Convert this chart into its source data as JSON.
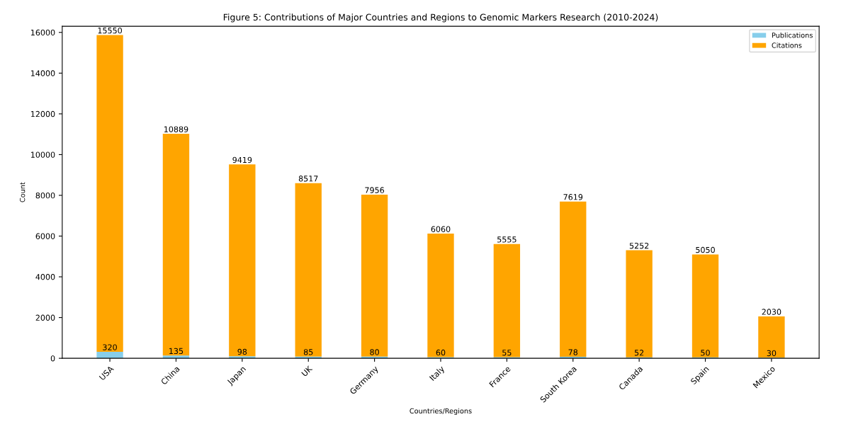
{
  "chart_data": {
    "type": "bar",
    "title": "Figure 5: Contributions of Major Countries and Regions to Genomic Markers Research (2010-2024)",
    "xlabel": "Countries/Regions",
    "ylabel": "Count",
    "categories": [
      "USA",
      "China",
      "Japan",
      "UK",
      "Germany",
      "Italy",
      "France",
      "South Korea",
      "Canada",
      "Spain",
      "Mexico"
    ],
    "stacked": true,
    "series": [
      {
        "name": "Publications",
        "color": "#87ceeb",
        "values": [
          320,
          135,
          98,
          85,
          80,
          60,
          55,
          78,
          52,
          50,
          30
        ]
      },
      {
        "name": "Citations",
        "color": "#ffa500",
        "values": [
          15550,
          10889,
          9419,
          8517,
          7956,
          6060,
          5555,
          7619,
          5252,
          5050,
          2030
        ]
      }
    ],
    "data_labels": true,
    "ylim": [
      0,
      16300
    ],
    "yticks": [
      0,
      2000,
      4000,
      6000,
      8000,
      10000,
      12000,
      14000,
      16000
    ],
    "legend": "top right"
  }
}
